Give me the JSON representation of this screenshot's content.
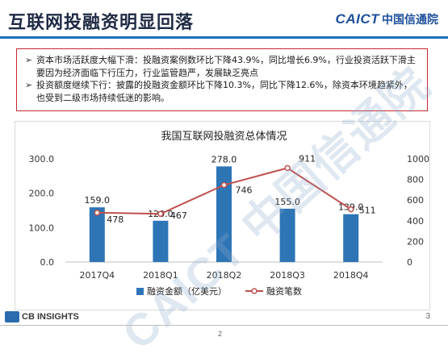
{
  "slide": {
    "title": "互联网投融资明显回落",
    "logo_text": "CAICT",
    "logo_cn": "中国信通院",
    "watermark": "CAICT 中国信通院",
    "bullets": [
      "资本市场活跃度大幅下滑：投融资案例数环比下降43.9%，同比增长6.9%，行业投资活跃下滑主要因为经济面临下行压力，行业监管趋严，发展缺乏亮点",
      "投资额度继续下行：披露的投融资金额环比下降10.3%，同比下降12.6%，除资本环境趋紧外，也受到二级市场持续低迷的影响。"
    ],
    "footer_brand": "CB INSIGHTS",
    "page_number": "3",
    "bottom_number": "2"
  },
  "colors": {
    "bar": "#2e75b6",
    "line": "#c0504d",
    "rule": "#1d6fb8",
    "bullet_border": "#c5282f"
  },
  "chart_data": {
    "type": "bar",
    "title": "我国互联网投融资总体情况",
    "categories": [
      "2017Q4",
      "2018Q1",
      "2018Q2",
      "2018Q3",
      "2018Q4"
    ],
    "series": [
      {
        "name": "融资金额（亿美元）",
        "type": "bar",
        "axis": "left",
        "values": [
          159.0,
          120.0,
          278.0,
          155.0,
          139.0
        ],
        "labels": [
          "159.0",
          "120.0",
          "278.0",
          "155.0",
          "139.0"
        ]
      },
      {
        "name": "融资笔数",
        "type": "line",
        "axis": "right",
        "values": [
          478,
          467,
          746,
          911,
          511
        ],
        "labels": [
          "478",
          "467",
          "746",
          "911",
          "511"
        ]
      }
    ],
    "y_left": {
      "range": [
        0,
        300
      ],
      "ticks": [
        "0.0",
        "100.0",
        "200.0",
        "300.0"
      ]
    },
    "y_right": {
      "range": [
        0,
        1000
      ],
      "ticks": [
        "0",
        "200",
        "400",
        "600",
        "800",
        "1000"
      ]
    },
    "grid": false,
    "legend": "bottom"
  }
}
